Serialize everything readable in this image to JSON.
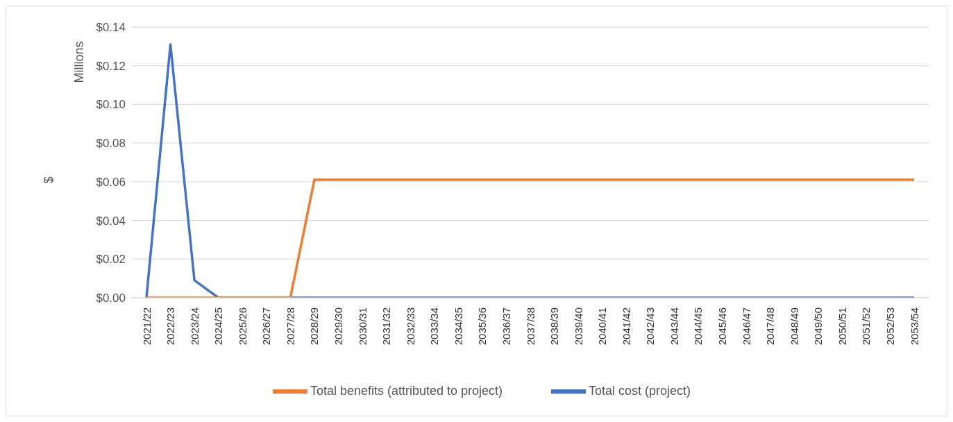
{
  "chart_data": {
    "type": "line",
    "ylabel": "$",
    "annotations": [
      "Millions"
    ],
    "categories": [
      "2021/22",
      "2022/23",
      "2023/24",
      "2024/25",
      "2025/26",
      "2026/27",
      "2027/28",
      "2028/29",
      "2029/30",
      "2030/31",
      "2031/32",
      "2032/33",
      "2033/34",
      "2034/35",
      "2035/36",
      "2036/37",
      "2037/38",
      "2038/39",
      "2039/40",
      "2040/41",
      "2041/42",
      "2042/43",
      "2043/44",
      "2044/45",
      "2045/46",
      "2046/47",
      "2047/48",
      "2048/49",
      "2049/50",
      "2050/51",
      "2051/52",
      "2052/53",
      "2053/54"
    ],
    "series": [
      {
        "name": "Total cost (project)",
        "color": "#4472c4",
        "values": [
          0,
          0.131,
          0.009,
          0,
          0,
          0,
          0,
          0,
          0,
          0,
          0,
          0,
          0,
          0,
          0,
          0,
          0,
          0,
          0,
          0,
          0,
          0,
          0,
          0,
          0,
          0,
          0,
          0,
          0,
          0,
          0,
          0,
          0
        ]
      },
      {
        "name": "Total benefits (attributed to project)",
        "color": "#ed7d31",
        "values": [
          0,
          0,
          0,
          0,
          0,
          0,
          0,
          0.061,
          0.061,
          0.061,
          0.061,
          0.061,
          0.061,
          0.061,
          0.061,
          0.061,
          0.061,
          0.061,
          0.061,
          0.061,
          0.061,
          0.061,
          0.061,
          0.061,
          0.061,
          0.061,
          0.061,
          0.061,
          0.061,
          0.061,
          0.061,
          0.061,
          0.061
        ]
      }
    ],
    "ylim": [
      0,
      0.14
    ],
    "yticks": [
      {
        "value": 0,
        "label": "$0.00"
      },
      {
        "value": 0.02,
        "label": "$0.02"
      },
      {
        "value": 0.04,
        "label": "$0.04"
      },
      {
        "value": 0.06,
        "label": "$0.06"
      },
      {
        "value": 0.08,
        "label": "$0.08"
      },
      {
        "value": 0.1,
        "label": "$0.10"
      },
      {
        "value": 0.12,
        "label": "$0.12"
      },
      {
        "value": 0.14,
        "label": "$0.14"
      }
    ],
    "grid": "y",
    "legend": "bottom",
    "marker": "none",
    "line_style": "solid"
  }
}
